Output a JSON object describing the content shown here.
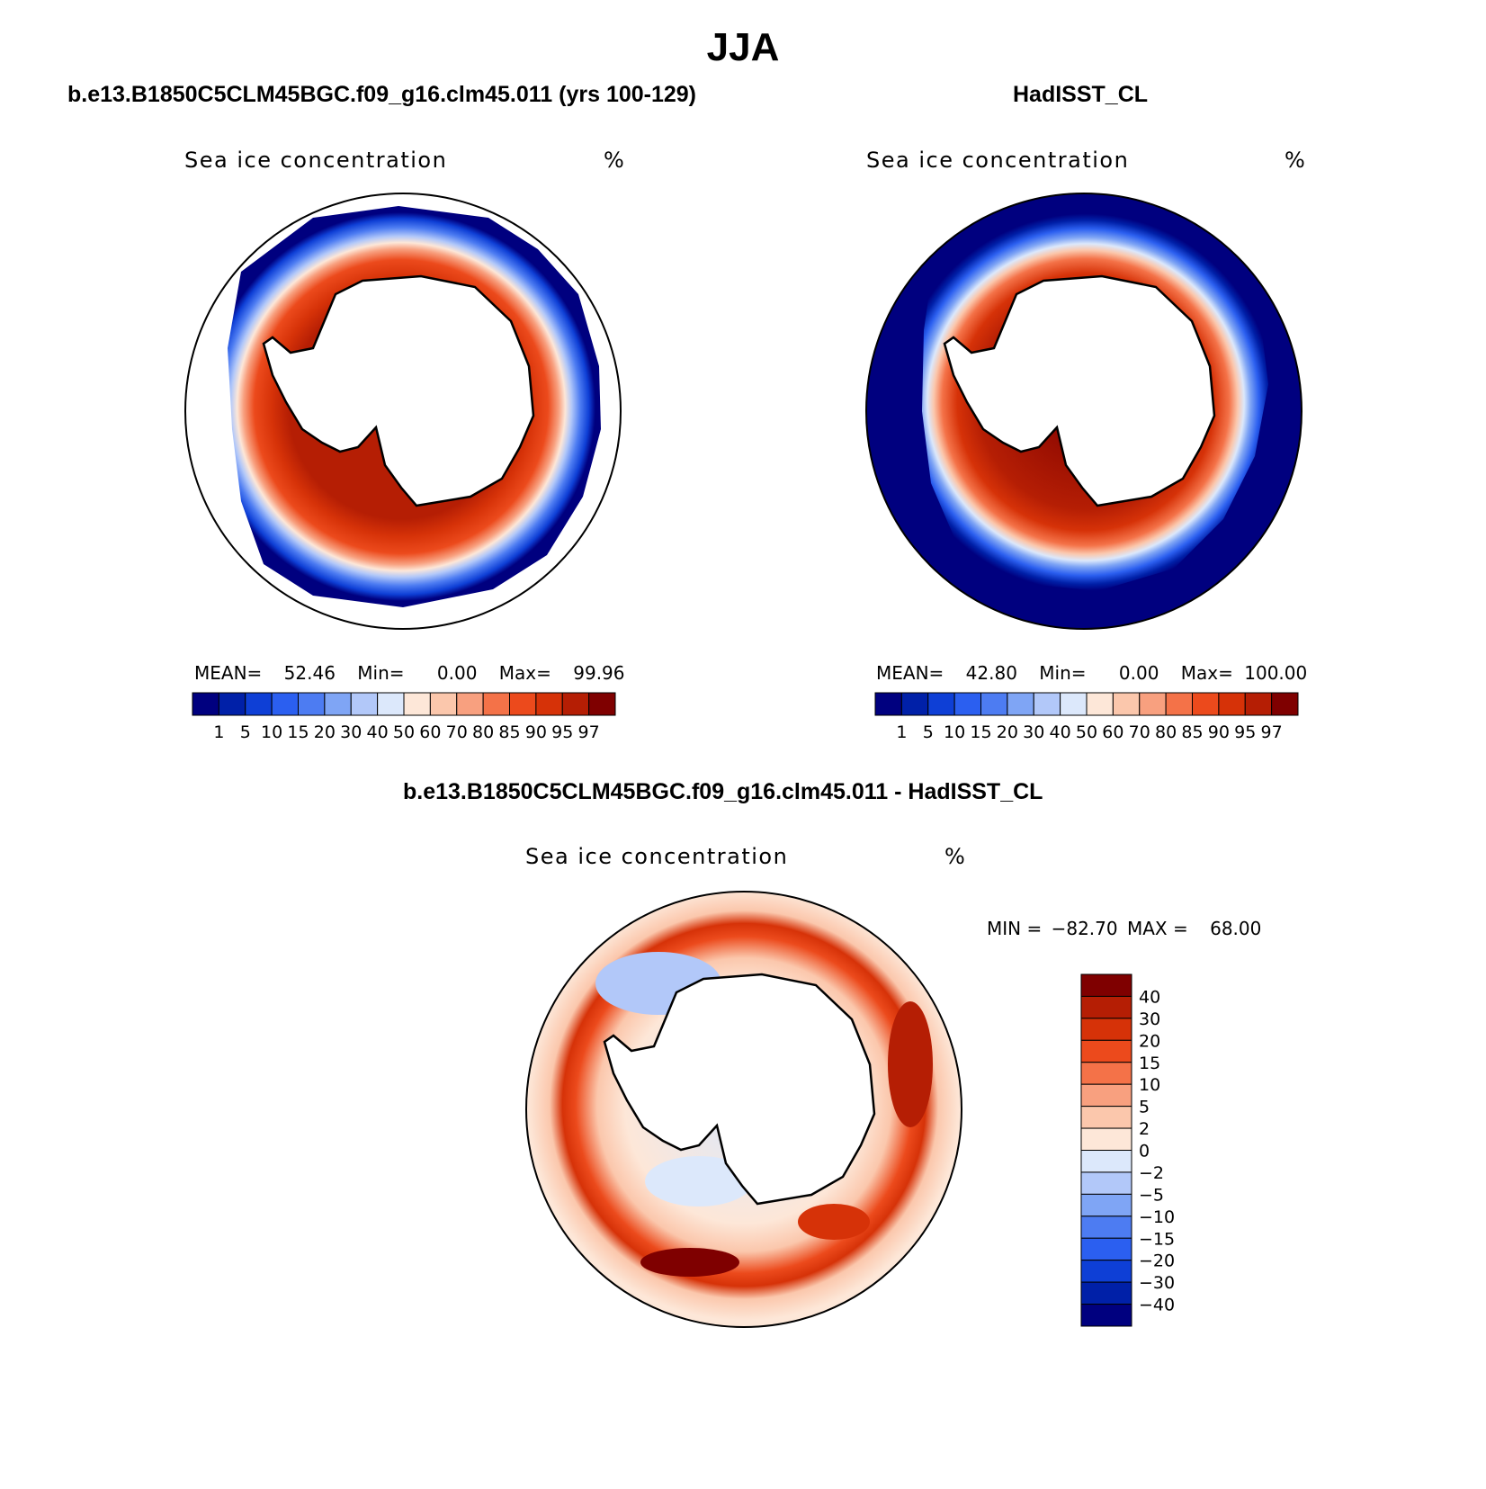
{
  "figure_title": "JJA",
  "variable_label": "Sea ice concentration",
  "units": "%",
  "colors": {
    "conc_scale": [
      "#00007f",
      "#0020a8",
      "#0e3fd6",
      "#2b5ff0",
      "#4d7cf2",
      "#7fa5f5",
      "#b2c8f9",
      "#dce8fb",
      "#fde7d8",
      "#fbc7ac",
      "#f8a07f",
      "#f47248",
      "#ec4a1c",
      "#d63208",
      "#b51e04",
      "#7f0000"
    ],
    "diff_scale": [
      "#7f0000",
      "#b51e04",
      "#d63208",
      "#ec4a1c",
      "#f47248",
      "#f8a07f",
      "#fbc7ac",
      "#fde7d8",
      "#dce8fb",
      "#b2c8f9",
      "#7fa5f5",
      "#4d7cf2",
      "#2b5ff0",
      "#0e3fd6",
      "#0020a8",
      "#00007f"
    ]
  },
  "panels": [
    {
      "title": "b.e13.B1850C5CLM45BGC.f09_g16.clm45.011 (yrs 100-129)",
      "stats": {
        "mean_label": "MEAN=",
        "mean": "52.46",
        "min_label": "Min=",
        "min": "0.00",
        "max_label": "Max=",
        "max": "99.96"
      }
    },
    {
      "title": "HadISST_CL",
      "stats": {
        "mean_label": "MEAN=",
        "mean": "42.80",
        "min_label": "Min=",
        "min": "0.00",
        "max_label": "Max=",
        "max": "100.00"
      }
    },
    {
      "title": "b.e13.B1850C5CLM45BGC.f09_g16.clm45.011 - HadISST_CL",
      "stats": {
        "min_label": "MIN =",
        "min": "−82.70",
        "max_label": "MAX =",
        "max": "68.00"
      }
    }
  ],
  "conc_levels": [
    "1",
    "5",
    "10",
    "15",
    "20",
    "30",
    "40",
    "50",
    "60",
    "70",
    "80",
    "85",
    "90",
    "95",
    "97"
  ],
  "diff_levels": [
    "40",
    "30",
    "20",
    "15",
    "10",
    "5",
    "2",
    "0",
    "−2",
    "−5",
    "−10",
    "−15",
    "−20",
    "−30",
    "−40"
  ]
}
